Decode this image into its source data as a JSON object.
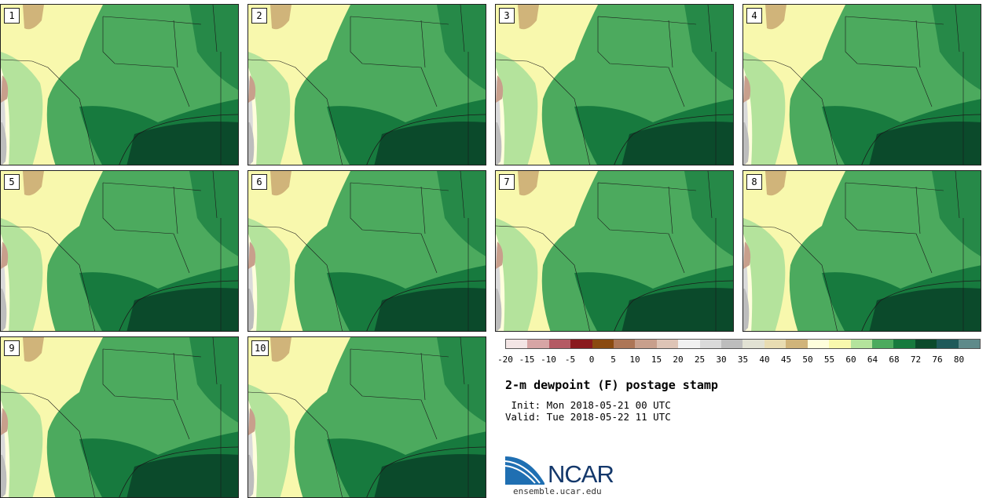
{
  "panels": [
    {
      "label": "1"
    },
    {
      "label": "2"
    },
    {
      "label": "3"
    },
    {
      "label": "4"
    },
    {
      "label": "5"
    },
    {
      "label": "6"
    },
    {
      "label": "7"
    },
    {
      "label": "8"
    },
    {
      "label": "9"
    },
    {
      "label": "10"
    }
  ],
  "legend": {
    "colors": [
      "#f3e5e5",
      "#d7a5a5",
      "#b45a64",
      "#8a1a1e",
      "#8a4a10",
      "#ad7657",
      "#c89f8c",
      "#dec4b6",
      "#f1f1f1",
      "#dadada",
      "#bdbdbd",
      "#e1e1d3",
      "#e8dcb2",
      "#d0b47a",
      "#fefedc",
      "#f8f8ad",
      "#b4e39c",
      "#4caa5e",
      "#177a3e",
      "#0b4a2b",
      "#1f5a5a",
      "#5e8a8a"
    ],
    "ticks": [
      "-20",
      "-15",
      "-10",
      "-5",
      "0",
      "5",
      "10",
      "15",
      "20",
      "25",
      "30",
      "35",
      "40",
      "45",
      "50",
      "55",
      "60",
      "64",
      "68",
      "72",
      "76",
      "80"
    ]
  },
  "title": "2-m dewpoint (F) postage stamp",
  "init": " Init: Mon 2018-05-21 00 UTC",
  "valid": "Valid: Tue 2018-05-22 11 UTC",
  "logo": {
    "text": "NCAR",
    "url": "ensemble.ucar.edu",
    "colors": {
      "navy": "#14386b",
      "blue": "#1f6fb2"
    }
  }
}
